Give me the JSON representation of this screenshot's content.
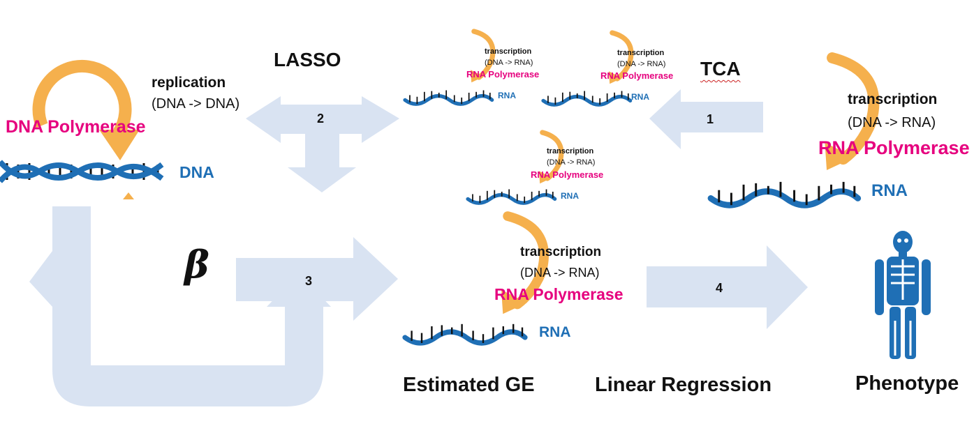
{
  "colors": {
    "arrow_fill": "#d9e3f2",
    "curved_arrow": "#f5b04d",
    "polymerase_text": "#e6007e",
    "nucleic_acid": "#1f6fb5",
    "skeleton": "#1f6fb5"
  },
  "labels": {
    "lasso": "LASSO",
    "tca": "TCA",
    "estimated_ge": "Estimated GE",
    "linear_regression": "Linear Regression",
    "phenotype": "Phenotype",
    "beta": "β"
  },
  "steps": [
    "1",
    "2",
    "3",
    "4"
  ],
  "replication": {
    "line1": "replication",
    "line2": "(DNA -> DNA)",
    "enzyme": "DNA Polymerase",
    "molecule": "DNA"
  },
  "transcription": {
    "line1": "transcription",
    "line2": "(DNA -> RNA)",
    "enzyme": "RNA Polymerase",
    "molecule": "RNA"
  },
  "icons": {
    "replication_cycle": "circular-arrow-icon",
    "dna": "double-helix-icon",
    "rna": "single-strand-icon",
    "phenotype": "human-skeleton-icon"
  }
}
